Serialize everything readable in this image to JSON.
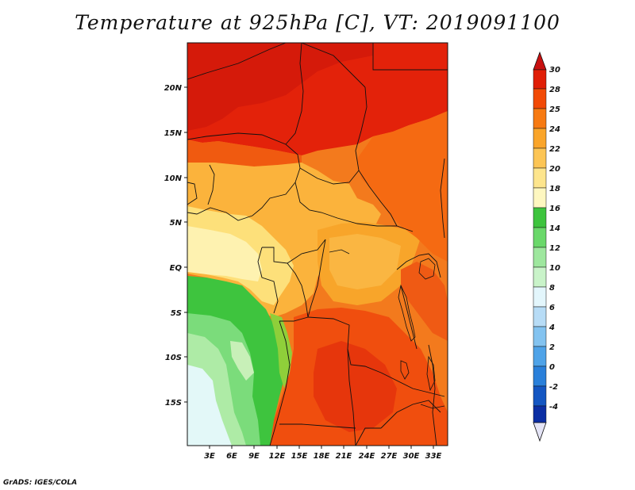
{
  "title": "Temperature at 925hPa [C], VT: 2019091100",
  "credit": "GrADS: IGES/COLA",
  "map": {
    "lat_labels": [
      "20N",
      "15N",
      "10N",
      "5N",
      "EQ",
      "5S",
      "10S",
      "15S"
    ],
    "lon_labels": [
      "3E",
      "6E",
      "9E",
      "12E",
      "15E",
      "18E",
      "21E",
      "24E",
      "27E",
      "30E",
      "33E"
    ]
  },
  "colorbar": {
    "labels": [
      "30",
      "28",
      "25",
      "24",
      "22",
      "20",
      "18",
      "16",
      "14",
      "12",
      "10",
      "8",
      "6",
      "4",
      "2",
      "0",
      "-2",
      "-4"
    ],
    "colors": [
      "#c81010",
      "#e01e06",
      "#f24a06",
      "#f77a12",
      "#faa52a",
      "#fcc555",
      "#fde58d",
      "#fef7c0",
      "#3ec43e",
      "#6ad86a",
      "#9ee79e",
      "#c9f3c9",
      "#e3f6fc",
      "#b7dcf6",
      "#83c3f0",
      "#4fa3e8",
      "#2a80da",
      "#1456c2",
      "#0b2ea4",
      "#08137a",
      "#e4e4f6"
    ]
  }
}
